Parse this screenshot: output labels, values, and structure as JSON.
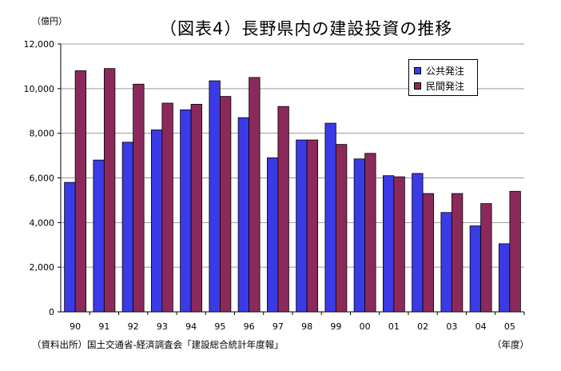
{
  "title": "（図表4）長野県内の建設投資の推移",
  "unit_label": "（億円）",
  "x_unit_label": "（年度）",
  "source": "（資料出所）国土交通省‐経済調査会「建設総合統計年度報」",
  "colors": {
    "public": "#3a3ae6",
    "private": "#8b2a5a"
  },
  "chart_data": {
    "type": "bar",
    "title": "（図表4）長野県内の建設投資の推移",
    "xlabel": "（年度）",
    "ylabel": "（億円）",
    "ylim": [
      0,
      12000
    ],
    "yticks": [
      0,
      2000,
      4000,
      6000,
      8000,
      10000,
      12000
    ],
    "ytick_labels": [
      "0",
      "2,000",
      "4,000",
      "6,000",
      "8,000",
      "10,000",
      "12,000"
    ],
    "categories": [
      "90",
      "91",
      "92",
      "93",
      "94",
      "95",
      "96",
      "97",
      "98",
      "99",
      "00",
      "01",
      "02",
      "03",
      "04",
      "05"
    ],
    "series": [
      {
        "name": "公共発注",
        "values": [
          5800,
          6800,
          7600,
          8150,
          9050,
          10350,
          8700,
          6900,
          7700,
          8450,
          6850,
          6100,
          6200,
          4450,
          3850,
          3050
        ]
      },
      {
        "name": "民間発注",
        "values": [
          10800,
          10900,
          10200,
          9350,
          9300,
          9650,
          10500,
          9200,
          7700,
          7500,
          7100,
          6050,
          5300,
          5300,
          4850,
          5400
        ]
      }
    ],
    "legend_position": "top-right",
    "grid": true
  }
}
